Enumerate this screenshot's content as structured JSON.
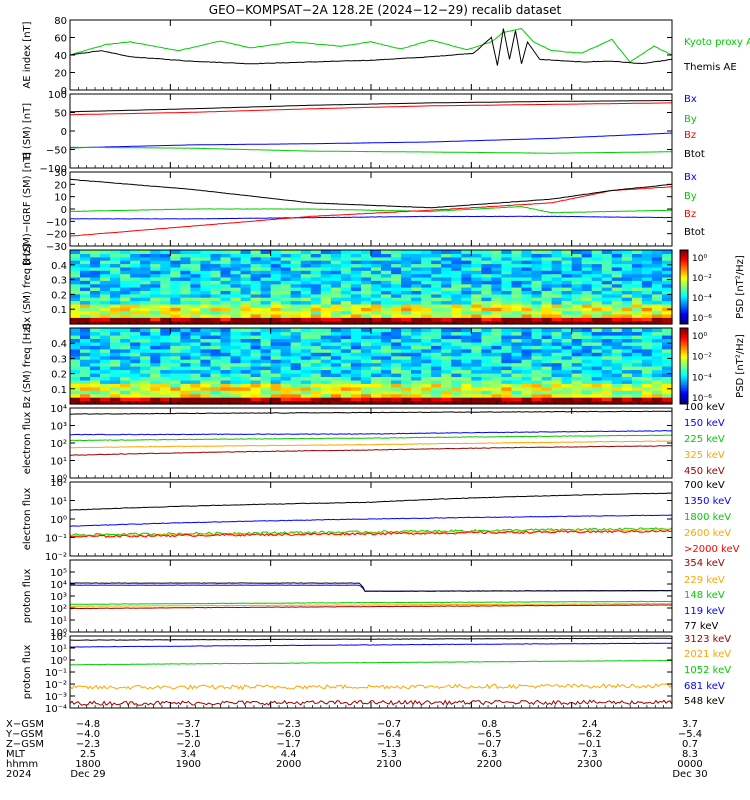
{
  "title": "GEO−KOMPSAT−2A 128.2E (2024−12−29) recalib dataset",
  "colors": {
    "black": "#000000",
    "blue": "#0000ff",
    "green": "#00cc00",
    "red": "#ff0000",
    "orange": "#ffa500",
    "darkred": "#990000",
    "lime": "#33ff33"
  },
  "chart_data": [
    {
      "id": "ae",
      "type": "line",
      "ylabel": "AE index [nT]",
      "ylim": [
        0,
        80
      ],
      "ticks": [
        "0",
        "20",
        "40",
        "60",
        "80"
      ],
      "series": [
        {
          "name": "Kyoto proxy AE",
          "color": "#00cc00",
          "x": [
            0,
            0.06,
            0.1,
            0.18,
            0.25,
            0.3,
            0.37,
            0.45,
            0.5,
            0.55,
            0.6,
            0.66,
            0.7,
            0.72,
            0.75,
            0.77,
            0.8,
            0.85,
            0.9,
            0.93,
            0.97,
            1.0
          ],
          "y": [
            40,
            52,
            55,
            45,
            56,
            48,
            55,
            50,
            55,
            47,
            57,
            46,
            55,
            66,
            70,
            55,
            45,
            42,
            58,
            32,
            50,
            40
          ]
        },
        {
          "name": "Themis AE",
          "color": "#000000",
          "x": [
            0,
            0.05,
            0.1,
            0.2,
            0.3,
            0.4,
            0.5,
            0.6,
            0.67,
            0.7,
            0.71,
            0.72,
            0.73,
            0.74,
            0.75,
            0.76,
            0.78,
            0.85,
            0.9,
            0.95,
            1.0
          ],
          "y": [
            40,
            45,
            38,
            33,
            30,
            32,
            34,
            38,
            42,
            60,
            28,
            70,
            35,
            68,
            30,
            55,
            35,
            32,
            33,
            30,
            35
          ]
        }
      ]
    },
    {
      "id": "b",
      "type": "line",
      "ylabel": "B (SM) [nT]",
      "ylim": [
        -100,
        150
      ],
      "ticks": [
        "−100",
        "−50",
        "0",
        "50",
        "100"
      ],
      "series": [
        {
          "name": "Bx",
          "color": "#0000ff",
          "x": [
            0,
            0.2,
            0.4,
            0.6,
            0.8,
            1.0
          ],
          "y": [
            -32,
            -22,
            -18,
            -12,
            0,
            18
          ]
        },
        {
          "name": "By",
          "color": "#00cc00",
          "x": [
            0,
            0.2,
            0.4,
            0.6,
            0.8,
            1.0
          ],
          "y": [
            -30,
            -33,
            -43,
            -46,
            -50,
            -45
          ]
        },
        {
          "name": "Bz",
          "color": "#ff0000",
          "x": [
            0,
            0.2,
            0.4,
            0.6,
            0.8,
            1.0
          ],
          "y": [
            80,
            88,
            100,
            110,
            115,
            120
          ]
        },
        {
          "name": "Btot",
          "color": "#000000",
          "x": [
            0,
            0.2,
            0.4,
            0.6,
            0.8,
            1.0
          ],
          "y": [
            90,
            100,
            112,
            120,
            125,
            128
          ]
        }
      ]
    },
    {
      "id": "bdiff",
      "type": "line",
      "ylabel": "B (SM)−IGRF (SM) [nT]",
      "ylim": [
        -30,
        30
      ],
      "ticks": [
        "−30",
        "−20",
        "−10",
        "0",
        "10",
        "20",
        "30"
      ],
      "series": [
        {
          "name": "Bx",
          "color": "#0000ff",
          "x": [
            0,
            0.2,
            0.4,
            0.6,
            0.8,
            1.0
          ],
          "y": [
            -8,
            -8,
            -7,
            -6,
            -6,
            -7
          ]
        },
        {
          "name": "By",
          "color": "#00cc00",
          "x": [
            0,
            0.2,
            0.4,
            0.6,
            0.75,
            0.8,
            1.0
          ],
          "y": [
            -2,
            0,
            0,
            -2,
            2,
            -3,
            -1
          ]
        },
        {
          "name": "Bz",
          "color": "#ff0000",
          "x": [
            0,
            0.2,
            0.4,
            0.6,
            0.8,
            0.9,
            1.0
          ],
          "y": [
            -22,
            -14,
            -6,
            -1,
            5,
            15,
            18
          ]
        },
        {
          "name": "Btot",
          "color": "#000000",
          "x": [
            0,
            0.2,
            0.4,
            0.6,
            0.8,
            0.9,
            1.0
          ],
          "y": [
            24,
            16,
            5,
            1,
            8,
            15,
            20
          ]
        }
      ]
    },
    {
      "id": "bx_spec",
      "type": "heatmap",
      "ylabel": "Bx (SM) freq [Hz]",
      "ylim": [
        0,
        0.5
      ],
      "ticks": [
        "0.1",
        "0.2",
        "0.3",
        "0.4"
      ],
      "colorbar": {
        "label": "PSD [nT²/Hz]",
        "ticks": [
          "10⁰",
          "10⁻²",
          "10⁻⁴",
          "10⁻⁶"
        ]
      }
    },
    {
      "id": "bz_spec",
      "type": "heatmap",
      "ylabel": "Bz (SM) freq [Hz]",
      "ylim": [
        0,
        0.5
      ],
      "ticks": [
        "0.1",
        "0.2",
        "0.3",
        "0.4"
      ],
      "colorbar": {
        "label": "PSD [nT²/Hz]",
        "ticks": [
          "10⁰",
          "10⁻²",
          "10⁻⁴",
          "10⁻⁶"
        ]
      }
    },
    {
      "id": "eflux1",
      "type": "line",
      "ylabel": "electron flux",
      "yscale": "log",
      "ylim": [
        1,
        10000
      ],
      "ticks": [
        "10⁰",
        "10¹",
        "10²",
        "10³",
        "10⁴"
      ],
      "series": [
        {
          "name": "100 keV",
          "color": "#000000",
          "x": [
            0,
            0.5,
            1.0
          ],
          "y": [
            4500,
            5500,
            6500
          ]
        },
        {
          "name": "150 keV",
          "color": "#0000ff",
          "x": [
            0,
            0.5,
            1.0
          ],
          "y": [
            300,
            330,
            500
          ]
        },
        {
          "name": "225 keV",
          "color": "#00cc00",
          "x": [
            0,
            0.5,
            1.0
          ],
          "y": [
            140,
            190,
            280
          ]
        },
        {
          "name": "325 keV",
          "color": "#ffa500",
          "x": [
            0,
            0.5,
            1.0
          ],
          "y": [
            55,
            80,
            130
          ]
        },
        {
          "name": "450 keV",
          "color": "#990000",
          "x": [
            0,
            0.5,
            1.0
          ],
          "y": [
            20,
            40,
            70
          ]
        }
      ]
    },
    {
      "id": "eflux2",
      "type": "line",
      "ylabel": "electron flux",
      "yscale": "log",
      "ylim": [
        0.01,
        100
      ],
      "ticks": [
        "10⁻²",
        "10⁻¹",
        "10⁰",
        "10¹",
        "10²"
      ],
      "series": [
        {
          "name": "700 keV",
          "color": "#000000",
          "x": [
            0,
            0.5,
            1.0
          ],
          "y": [
            3,
            8,
            25
          ]
        },
        {
          "name": "1350 keV",
          "color": "#0000ff",
          "x": [
            0,
            0.5,
            1.0
          ],
          "y": [
            0.4,
            1.0,
            1.6
          ]
        },
        {
          "name": "1800 keV",
          "color": "#00cc00",
          "x": [
            0,
            0.5,
            1.0
          ],
          "y": [
            0.14,
            0.2,
            0.3
          ]
        },
        {
          "name": "2600 keV",
          "color": "#ffa500",
          "x": [
            0,
            0.5,
            1.0
          ],
          "y": [
            0.12,
            0.17,
            0.25
          ]
        },
        {
          "name": ">2000 keV",
          "color": "#ff0000",
          "x": [
            0,
            0.5,
            1.0
          ],
          "y": [
            0.11,
            0.16,
            0.22
          ]
        }
      ]
    },
    {
      "id": "pflux1",
      "type": "line",
      "ylabel": "proton flux",
      "yscale": "log",
      "ylim": [
        1,
        1000000
      ],
      "ticks": [
        "10⁰",
        "10¹",
        "10²",
        "10³",
        "10⁴",
        "10⁵"
      ],
      "series": [
        {
          "name": "354 keV",
          "color": "#990000",
          "x": [
            0,
            0.5,
            1.0
          ],
          "y": [
            90,
            130,
            180
          ]
        },
        {
          "name": "229 keV",
          "color": "#ffa500",
          "x": [
            0,
            0.5,
            1.0
          ],
          "y": [
            140,
            180,
            230
          ]
        },
        {
          "name": "148 keV",
          "color": "#00cc00",
          "x": [
            0,
            0.5,
            1.0
          ],
          "y": [
            200,
            280,
            350
          ]
        },
        {
          "name": "119 keV",
          "color": "#0000ff",
          "x": [
            0,
            0.48,
            0.49,
            1.0
          ],
          "y": [
            8000,
            8000,
            2500,
            2800
          ]
        },
        {
          "name": "77 keV",
          "color": "#000000",
          "x": [
            0,
            0.48,
            0.49,
            1.0
          ],
          "y": [
            12000,
            12000,
            2500,
            2800
          ]
        }
      ]
    },
    {
      "id": "pflux2",
      "type": "line",
      "ylabel": "proton flux",
      "yscale": "log",
      "ylim": [
        0.0001,
        100
      ],
      "ticks": [
        "10⁻⁴",
        "10⁻³",
        "10⁻²",
        "10⁻¹",
        "10⁰",
        "10¹",
        "10²"
      ],
      "series": [
        {
          "name": "3123 keV",
          "color": "#990000",
          "x": [
            0,
            0.5,
            1.0
          ],
          "y": [
            0.00025,
            0.00028,
            0.0003
          ]
        },
        {
          "name": "2021 keV",
          "color": "#ffa500",
          "x": [
            0,
            0.5,
            1.0
          ],
          "y": [
            0.005,
            0.006,
            0.007
          ]
        },
        {
          "name": "1052 keV",
          "color": "#00cc00",
          "x": [
            0,
            0.5,
            1.0
          ],
          "y": [
            0.4,
            0.6,
            0.9
          ]
        },
        {
          "name": "681 keV",
          "color": "#0000ff",
          "x": [
            0,
            0.5,
            1.0
          ],
          "y": [
            12,
            18,
            25
          ]
        },
        {
          "name": "548 keV",
          "color": "#000000",
          "x": [
            0,
            0.5,
            1.0
          ],
          "y": [
            45,
            55,
            65
          ]
        }
      ]
    }
  ],
  "axis_rows": [
    {
      "label": "X−GSM",
      "values": [
        "−4.8",
        "−3.7",
        "−2.3",
        "−0.7",
        "0.8",
        "2.4",
        "3.7"
      ]
    },
    {
      "label": "Y−GSM",
      "values": [
        "−4.0",
        "−5.1",
        "−6.0",
        "−6.4",
        "−6.5",
        "−6.2",
        "−5.4"
      ]
    },
    {
      "label": "Z−GSM",
      "values": [
        "−2.3",
        "−2.0",
        "−1.7",
        "−1.3",
        "−0.7",
        "−0.1",
        "0.7"
      ]
    },
    {
      "label": "MLT",
      "values": [
        "2.5",
        "3.4",
        "4.4",
        "5.3",
        "6.3",
        "7.3",
        "8.3"
      ]
    },
    {
      "label": "hhmm",
      "values": [
        "1800",
        "1900",
        "2000",
        "2100",
        "2200",
        "2300",
        "0000"
      ]
    },
    {
      "label": "2024",
      "values": [
        "Dec 29",
        "",
        "",
        "",
        "",
        "",
        "Dec 30"
      ]
    }
  ]
}
